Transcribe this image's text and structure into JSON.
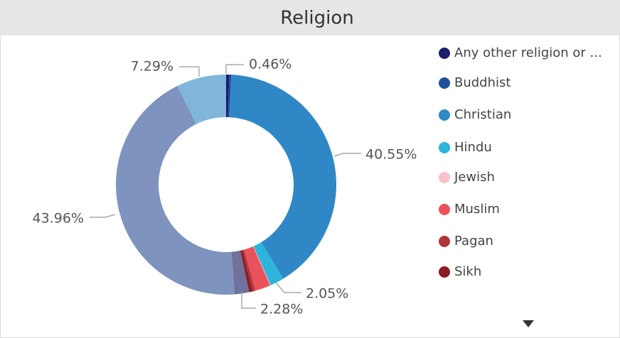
{
  "chart_data": {
    "type": "donut",
    "title": "Religion",
    "categories": [
      "Any other religion or ...",
      "Buddhist",
      "Christian",
      "Hindu",
      "Jewish",
      "Muslim",
      "Pagan",
      "Sikh",
      null,
      null,
      null
    ],
    "values": [
      0.46,
      0.3,
      40.55,
      2.05,
      0.1,
      2.28,
      0.4,
      0.5,
      2.11,
      43.96,
      7.29
    ],
    "value_labels": [
      "0.46%",
      null,
      "40.55%",
      "2.05%",
      null,
      "2.28%",
      null,
      null,
      null,
      "43.96%",
      "7.29%"
    ],
    "colors": [
      "#1b1f6b",
      "#1f4f9d",
      "#2f88c5",
      "#2cb4da",
      "#f9c1ca",
      "#e9525a",
      "#b2343a",
      "#8a1e22",
      "#72709c",
      "#7f93bf",
      "#80b6dc"
    ],
    "legend": "right"
  }
}
